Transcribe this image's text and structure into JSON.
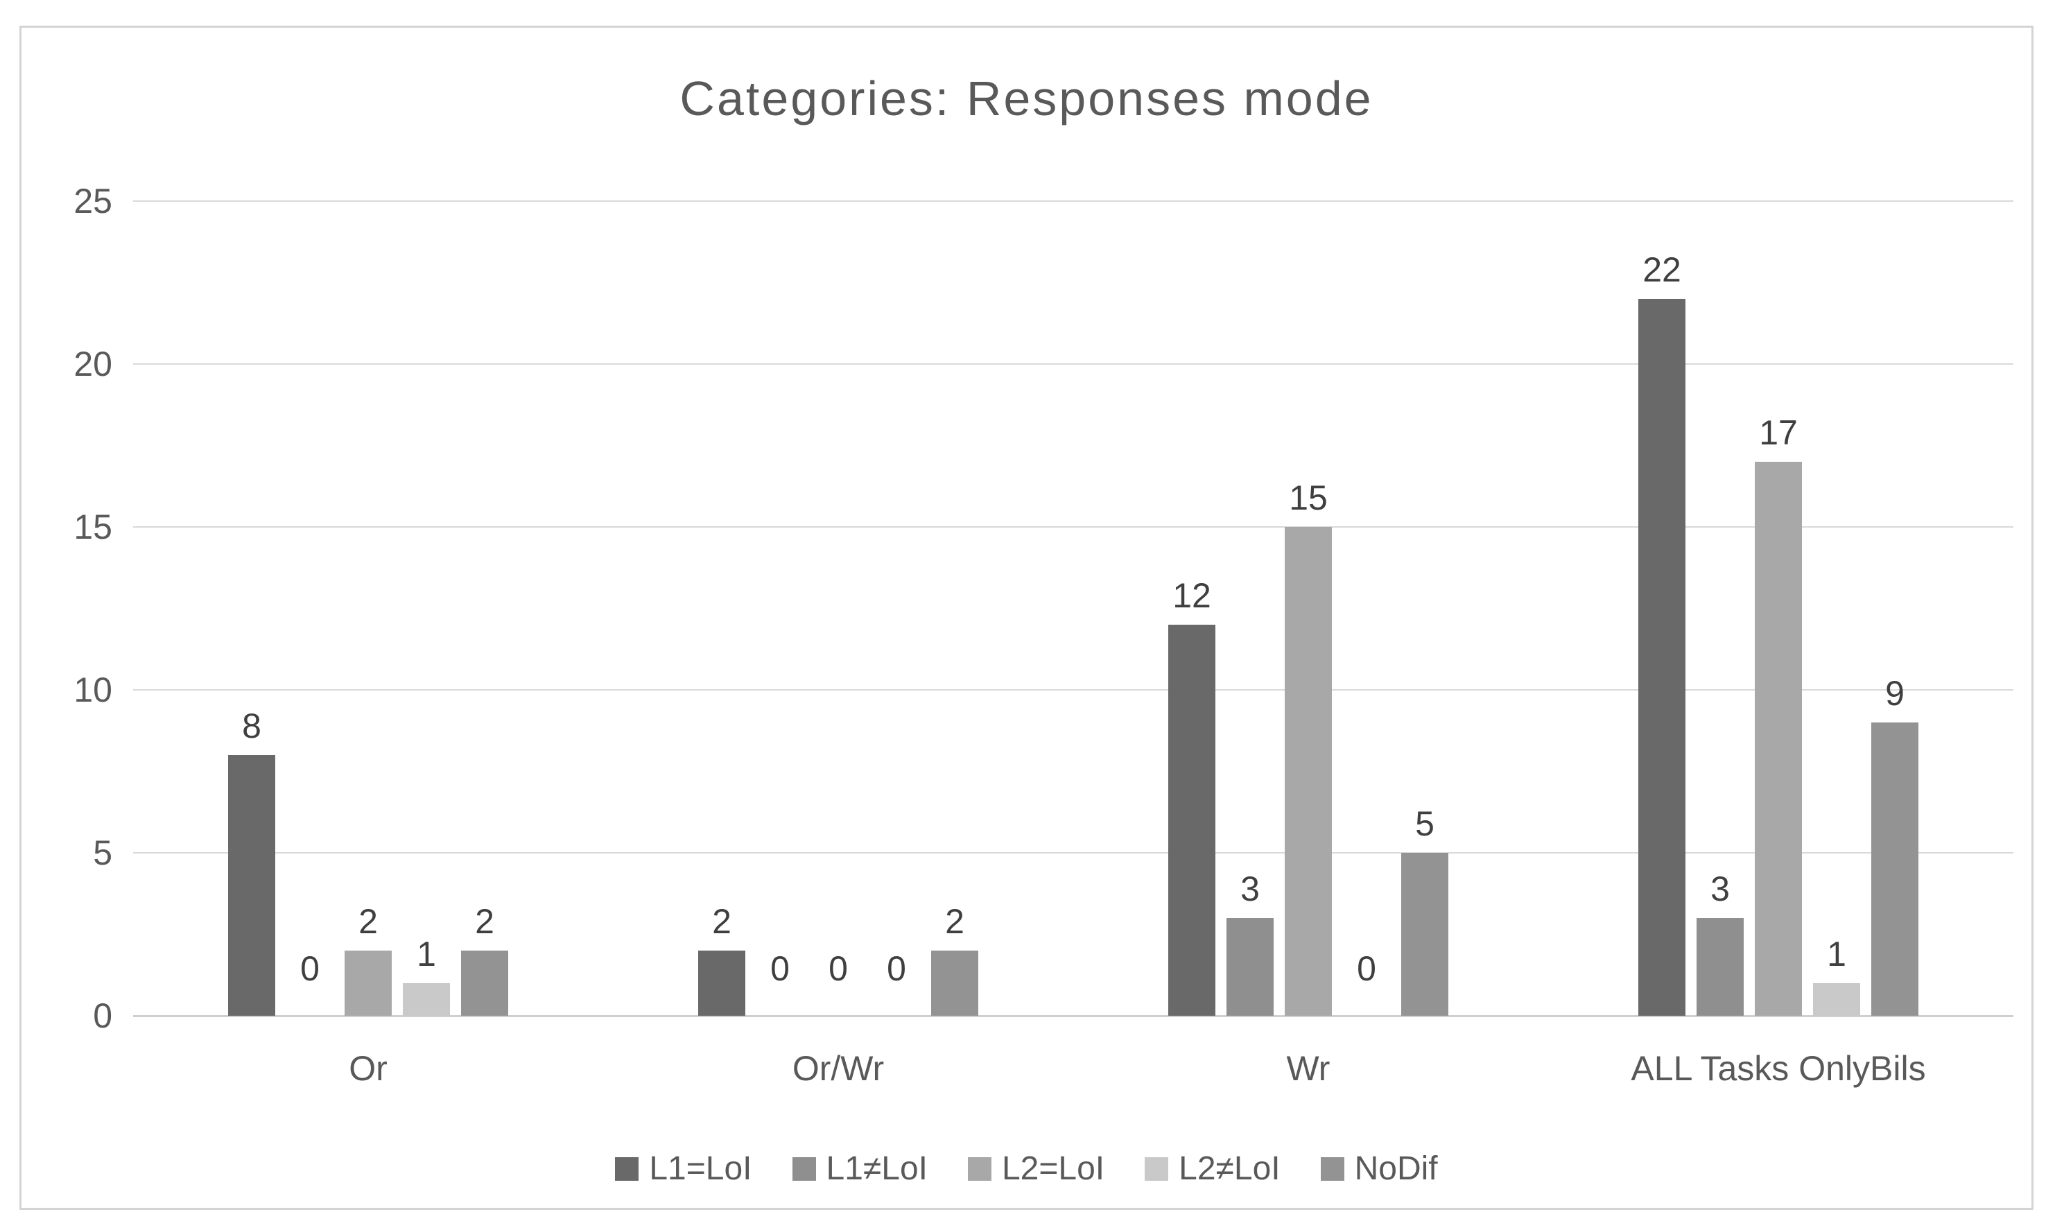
{
  "chart_data": {
    "type": "bar",
    "title": "Categories: Responses mode",
    "categories": [
      "Or",
      "Or/Wr",
      "Wr",
      "ALL Tasks OnlyBils"
    ],
    "series": [
      {
        "name": "L1=LoI",
        "color": "#696969",
        "values": [
          8,
          2,
          12,
          22
        ]
      },
      {
        "name": "L1≠LoI",
        "color": "#8f8f8f",
        "values": [
          0,
          0,
          3,
          3
        ]
      },
      {
        "name": "L2=LoI",
        "color": "#a8a8a8",
        "values": [
          2,
          0,
          15,
          17
        ]
      },
      {
        "name": "L2≠LoI",
        "color": "#c9c9c9",
        "values": [
          1,
          0,
          0,
          1
        ]
      },
      {
        "name": "NoDif",
        "color": "#939393",
        "values": [
          2,
          2,
          5,
          9
        ]
      }
    ],
    "y_ticks": [
      0,
      5,
      10,
      15,
      20,
      25
    ],
    "ylim": [
      0,
      25
    ],
    "grid": true,
    "legend_position": "bottom",
    "value_labels": "outside-end",
    "colors": {
      "title_text": "#595959",
      "axis_text": "#595959",
      "value_label_text": "#3f3f3f",
      "gridline": "#d9d9d9",
      "frame_border": "#d4d4d4",
      "background": "#ffffff"
    }
  }
}
